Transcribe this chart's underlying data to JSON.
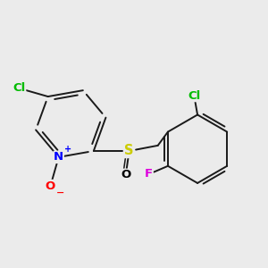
{
  "background_color": "#ebebeb",
  "bond_color": "#1a1a1a",
  "bond_width": 1.4,
  "atoms": {
    "N": {
      "color": "#0000ff"
    },
    "O_minus": {
      "color": "#ff0000"
    },
    "O_sulfinyl": {
      "color": "#ff0000"
    },
    "S": {
      "color": "#cccc00"
    },
    "Cl_green": {
      "color": "#00bb00"
    },
    "F": {
      "color": "#dd00dd"
    }
  },
  "font_size": 9.5,
  "figsize": [
    3.0,
    3.0
  ],
  "dpi": 100
}
